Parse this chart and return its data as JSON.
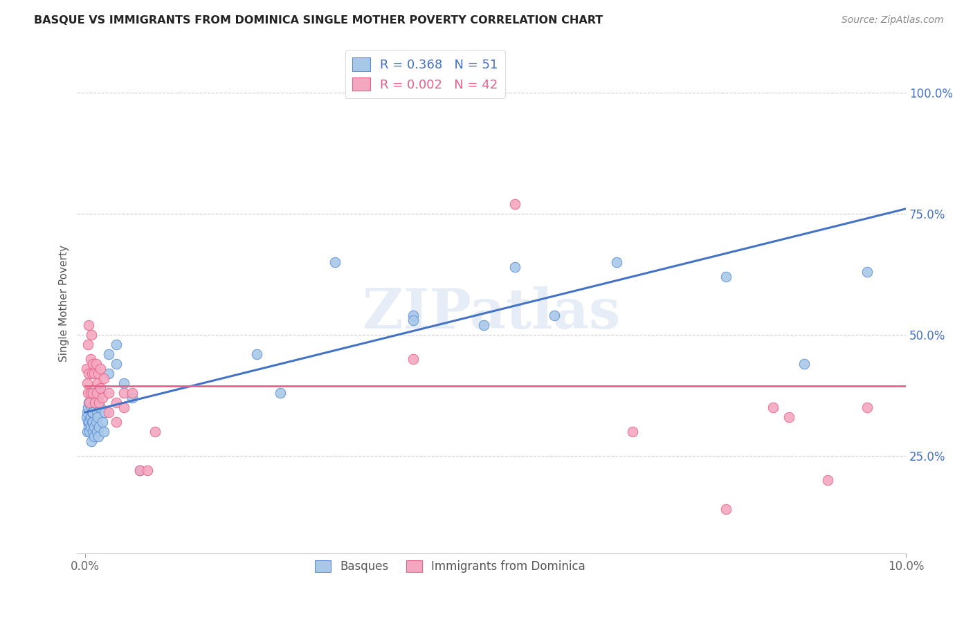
{
  "title": "BASQUE VS IMMIGRANTS FROM DOMINICA SINGLE MOTHER POVERTY CORRELATION CHART",
  "source": "Source: ZipAtlas.com",
  "ylabel": "Single Mother Poverty",
  "legend_blue_R": "0.368",
  "legend_blue_N": "51",
  "legend_pink_R": "0.002",
  "legend_pink_N": "42",
  "legend_label_blue": "Basques",
  "legend_label_pink": "Immigrants from Dominica",
  "blue_color": "#A8C8E8",
  "pink_color": "#F4A8C0",
  "blue_edge_color": "#5B8DD9",
  "pink_edge_color": "#E8608A",
  "blue_line_color": "#4472C4",
  "pink_line_color": "#E8608A",
  "watermark": "ZIPatlas",
  "background_color": "#FFFFFF",
  "basques_x": [
    0.0002,
    0.0003,
    0.0003,
    0.0004,
    0.0004,
    0.0005,
    0.0005,
    0.0006,
    0.0006,
    0.0007,
    0.0007,
    0.0008,
    0.0008,
    0.0009,
    0.0009,
    0.001,
    0.001,
    0.001,
    0.0012,
    0.0012,
    0.0013,
    0.0014,
    0.0015,
    0.0015,
    0.0016,
    0.0017,
    0.0018,
    0.002,
    0.002,
    0.0022,
    0.0024,
    0.0025,
    0.003,
    0.003,
    0.004,
    0.004,
    0.005,
    0.006,
    0.007,
    0.022,
    0.025,
    0.032,
    0.042,
    0.042,
    0.051,
    0.055,
    0.06,
    0.068,
    0.082,
    0.092,
    0.1
  ],
  "basques_y": [
    0.33,
    0.3,
    0.34,
    0.32,
    0.35,
    0.31,
    0.36,
    0.32,
    0.3,
    0.33,
    0.31,
    0.35,
    0.28,
    0.34,
    0.32,
    0.3,
    0.32,
    0.34,
    0.29,
    0.31,
    0.36,
    0.32,
    0.3,
    0.34,
    0.33,
    0.29,
    0.31,
    0.38,
    0.35,
    0.32,
    0.3,
    0.34,
    0.42,
    0.46,
    0.48,
    0.44,
    0.4,
    0.37,
    0.22,
    0.46,
    0.38,
    0.65,
    0.54,
    0.53,
    0.52,
    0.64,
    0.54,
    0.65,
    0.62,
    0.44,
    0.63
  ],
  "dominica_x": [
    0.0002,
    0.0003,
    0.0004,
    0.0004,
    0.0005,
    0.0005,
    0.0006,
    0.0007,
    0.0007,
    0.0008,
    0.0009,
    0.001,
    0.001,
    0.0012,
    0.0013,
    0.0014,
    0.0015,
    0.0016,
    0.0017,
    0.0018,
    0.002,
    0.002,
    0.0022,
    0.0024,
    0.003,
    0.003,
    0.004,
    0.004,
    0.005,
    0.005,
    0.006,
    0.007,
    0.008,
    0.009,
    0.042,
    0.055,
    0.07,
    0.082,
    0.088,
    0.09,
    0.095,
    0.1
  ],
  "dominica_y": [
    0.43,
    0.4,
    0.48,
    0.38,
    0.52,
    0.42,
    0.36,
    0.45,
    0.38,
    0.5,
    0.42,
    0.44,
    0.38,
    0.42,
    0.36,
    0.44,
    0.38,
    0.4,
    0.42,
    0.36,
    0.39,
    0.43,
    0.37,
    0.41,
    0.38,
    0.34,
    0.36,
    0.32,
    0.38,
    0.35,
    0.38,
    0.22,
    0.22,
    0.3,
    0.45,
    0.77,
    0.3,
    0.14,
    0.35,
    0.33,
    0.2,
    0.35
  ],
  "xlim_min": 0.0,
  "xlim_max": 0.105,
  "ylim_min": 0.05,
  "ylim_max": 1.08,
  "ytick_values": [
    0.25,
    0.5,
    0.75,
    1.0
  ],
  "ytick_labels": [
    "25.0%",
    "50.0%",
    "75.0%",
    "100.0%"
  ],
  "blue_line_x0": 0.0,
  "blue_line_y0": 0.34,
  "blue_line_x1": 0.105,
  "blue_line_y1": 0.76,
  "pink_line_x0": 0.0,
  "pink_line_y0": 0.395,
  "pink_line_x1": 0.105,
  "pink_line_y1": 0.395
}
